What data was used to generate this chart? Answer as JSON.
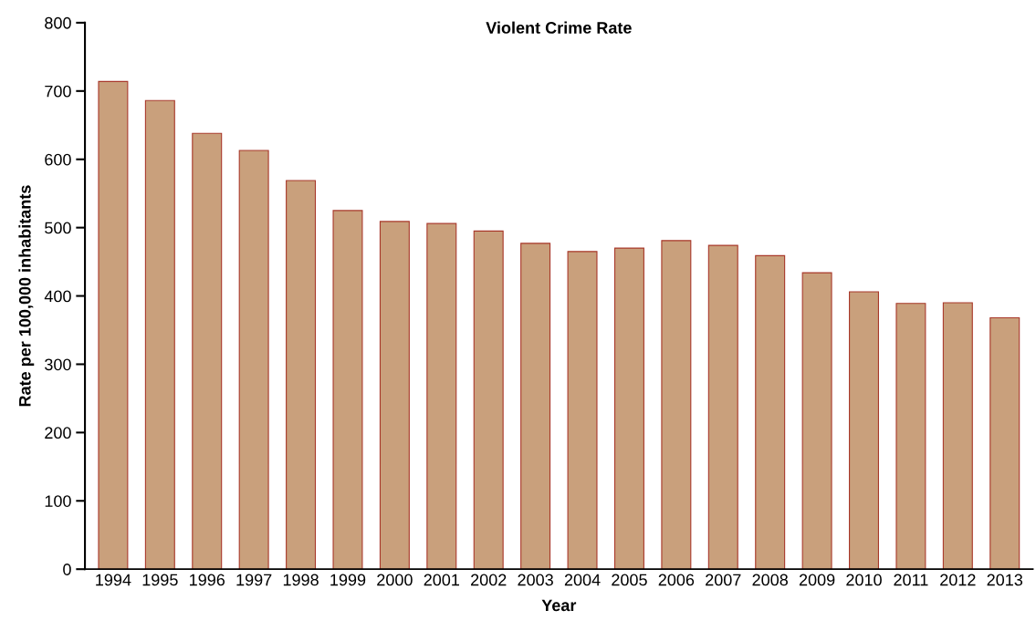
{
  "chart_data": {
    "type": "bar",
    "title": "Violent Crime Rate",
    "xlabel": "Year",
    "ylabel": "Rate per 100,000 inhabitants",
    "categories": [
      "1994",
      "1995",
      "1996",
      "1997",
      "1998",
      "1999",
      "2000",
      "2001",
      "2002",
      "2003",
      "2004",
      "2005",
      "2006",
      "2007",
      "2008",
      "2009",
      "2010",
      "2011",
      "2012",
      "2013"
    ],
    "values": [
      714,
      686,
      638,
      613,
      569,
      525,
      509,
      506,
      495,
      477,
      465,
      470,
      481,
      474,
      459,
      434,
      406,
      389,
      390,
      368
    ],
    "color": "#c9a07c",
    "ylim": [
      0,
      800
    ],
    "yticks": [
      0,
      100,
      200,
      300,
      400,
      500,
      600,
      700,
      800
    ],
    "grid": false
  }
}
